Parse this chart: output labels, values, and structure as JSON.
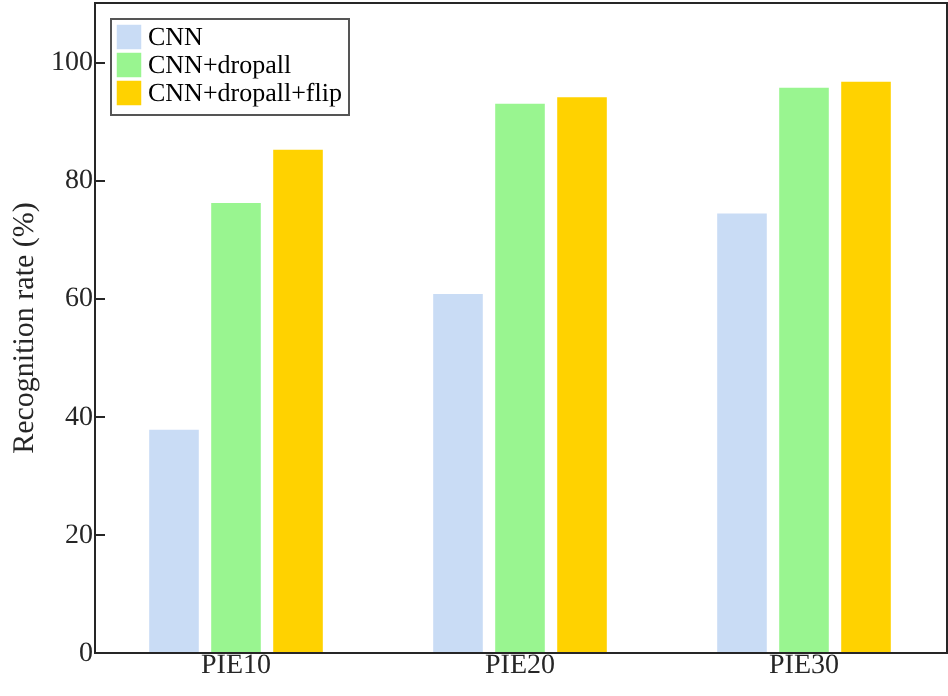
{
  "chart_data": {
    "type": "bar",
    "ylabel": "Recognition rate (%)",
    "categories": [
      "PIE10",
      "PIE20",
      "PIE30"
    ],
    "series": [
      {
        "name": "CNN",
        "color": "#c9dcf5",
        "values": [
          37.6,
          60.6,
          74.2
        ]
      },
      {
        "name": "CNN+dropall",
        "color": "#99f590",
        "values": [
          76.0,
          92.8,
          95.5
        ]
      },
      {
        "name": "CNN+dropall+flip",
        "color": "#ffd200",
        "values": [
          85.0,
          93.9,
          96.5
        ]
      }
    ],
    "ylim": [
      0,
      110
    ],
    "yticks": [
      0,
      20,
      40,
      60,
      80,
      100
    ],
    "grid": false,
    "legend": "top left"
  }
}
